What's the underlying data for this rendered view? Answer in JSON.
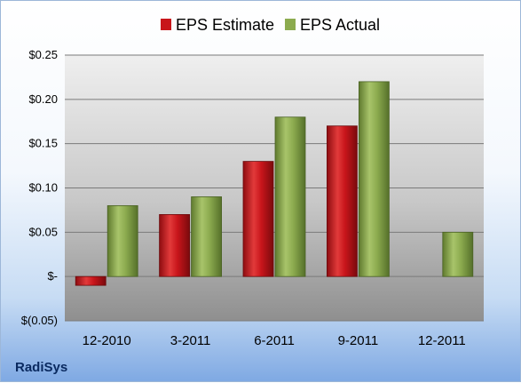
{
  "company": "RadiSys",
  "chart_data": {
    "type": "bar",
    "title": "",
    "xlabel": "",
    "ylabel": "",
    "categories": [
      "12-2010",
      "3-2011",
      "6-2011",
      "9-2011",
      "12-2011"
    ],
    "series": [
      {
        "name": "EPS Estimate",
        "color": "#c8151b",
        "values": [
          -0.01,
          0.07,
          0.13,
          0.17,
          null
        ]
      },
      {
        "name": "EPS Actual",
        "color": "#8cab4f",
        "values": [
          0.08,
          0.09,
          0.18,
          0.22,
          0.05
        ]
      }
    ],
    "ylim": [
      -0.05,
      0.25
    ],
    "yticks": [
      {
        "value": 0.25,
        "label": "$0.25"
      },
      {
        "value": 0.2,
        "label": "$0.20"
      },
      {
        "value": 0.15,
        "label": "$0.15"
      },
      {
        "value": 0.1,
        "label": "$0.10"
      },
      {
        "value": 0.05,
        "label": "$0.05"
      },
      {
        "value": 0,
        "label": "$-"
      },
      {
        "value": -0.05,
        "label": "$(0.05)"
      }
    ],
    "grid": true,
    "legend_position": "top"
  }
}
